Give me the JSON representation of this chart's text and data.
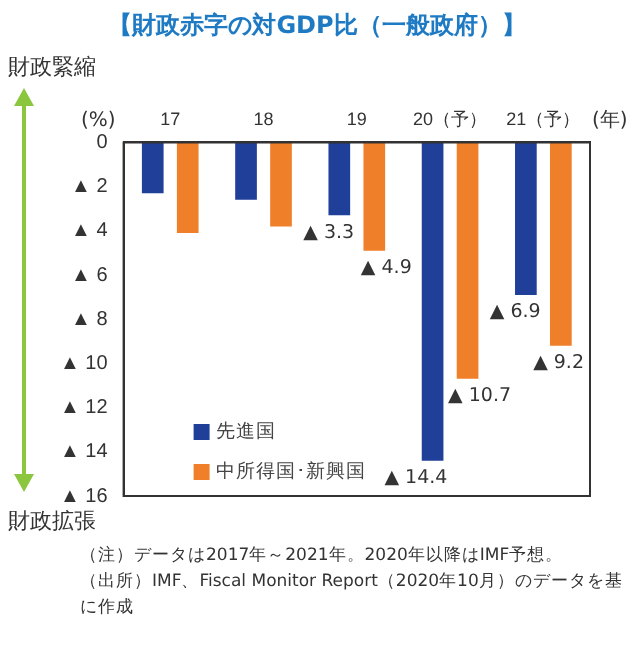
{
  "chart_data": {
    "type": "bar",
    "title": "【財政赤字の対GDP比（一般政府）】",
    "xlabel": "(年)",
    "ylabel": "(%)",
    "categories": [
      "17",
      "18",
      "19",
      "20（予）",
      "21（予）"
    ],
    "series": [
      {
        "name": "先進国",
        "color": "#1f3f99",
        "values": [
          2.3,
          2.6,
          3.3,
          14.4,
          6.9
        ],
        "value_labels": [
          null,
          null,
          "▲ 3.3",
          "▲ 14.4",
          "▲ 6.9"
        ]
      },
      {
        "name": "中所得国･新興国",
        "color": "#f07f2a",
        "values": [
          4.1,
          3.8,
          4.9,
          10.7,
          9.2
        ],
        "value_labels": [
          null,
          null,
          "▲ 4.9",
          "▲ 10.7",
          "▲ 9.2"
        ]
      }
    ],
    "ylim": [
      16,
      0
    ],
    "yticks": [
      0,
      {
        "value": 2,
        "label": "▲ 2"
      },
      {
        "value": 4,
        "label": "▲ 4"
      },
      {
        "value": 6,
        "label": "▲ 6"
      },
      {
        "value": 8,
        "label": "▲ 8"
      },
      {
        "value": 10,
        "label": "▲ 10"
      },
      {
        "value": 12,
        "label": "▲ 12"
      },
      {
        "value": 14,
        "label": "▲ 14"
      },
      {
        "value": 16,
        "label": "▲ 16"
      }
    ],
    "grid": false,
    "legend": "bottom left",
    "annotations": [
      "財政緊縮",
      "財政拡張",
      "（注）データは2017年～2021年。2020年以降はIMF予想。",
      "（出所）IMF、Fiscal Monitor Report（2020年10月）のデータを基に作成"
    ]
  }
}
